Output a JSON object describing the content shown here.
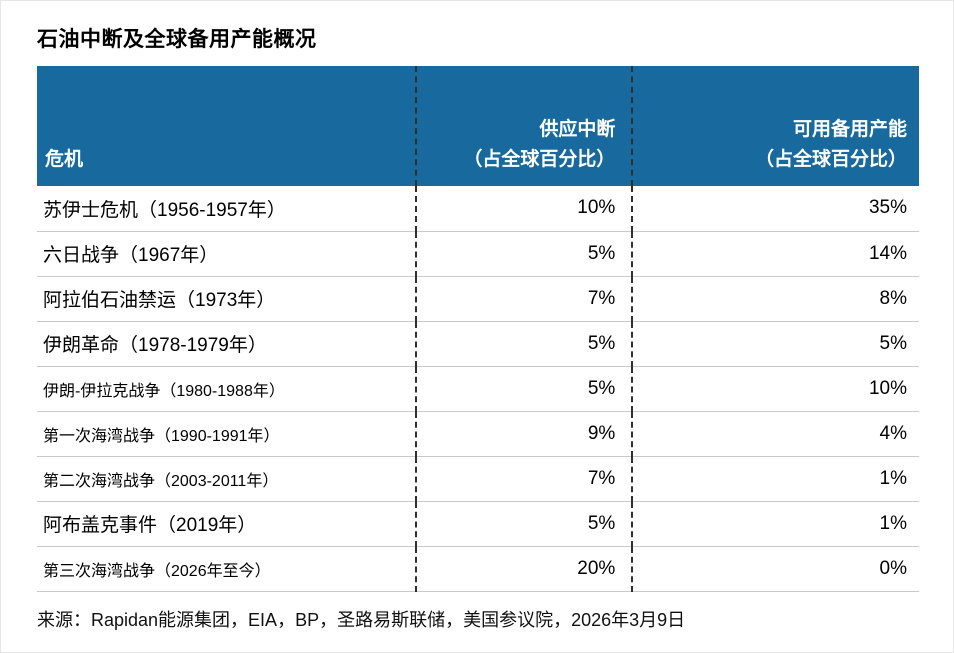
{
  "title": "石油中断及全球备用产能概况",
  "table": {
    "header": {
      "crisis": "危机",
      "disruption_main": "供应中断",
      "disruption_sub": "（占全球百分比）",
      "spare_main": "可用备用产能",
      "spare_sub": "（占全球百分比）"
    },
    "rows": [
      {
        "crisis": "苏伊士危机（1956-1957年）",
        "disruption": "10%",
        "spare": "35%"
      },
      {
        "crisis": "六日战争（1967年）",
        "disruption": "5%",
        "spare": "14%"
      },
      {
        "crisis": "阿拉伯石油禁运（1973年）",
        "disruption": "7%",
        "spare": "8%"
      },
      {
        "crisis": "伊朗革命（1978-1979年）",
        "disruption": "5%",
        "spare": "5%"
      },
      {
        "crisis": "伊朗-伊拉克战争（1980-1988年）",
        "disruption": "5%",
        "spare": "10%"
      },
      {
        "crisis": "第一次海湾战争（1990-1991年）",
        "disruption": "9%",
        "spare": "4%"
      },
      {
        "crisis": "第二次海湾战争（2003-2011年）",
        "disruption": "7%",
        "spare": "1%"
      },
      {
        "crisis": "阿布盖克事件（2019年）",
        "disruption": "5%",
        "spare": "1%"
      },
      {
        "crisis": "第三次海湾战争（2026年至今）",
        "disruption": "20%",
        "spare": "0%"
      }
    ]
  },
  "source": "来源：Rapidan能源集团，EIA，BP，圣路易斯联储，美国参议院，2026年3月9日",
  "colors": {
    "header_bg": "#17699e",
    "header_text": "#ffffff",
    "row_divider": "#c9c9c9",
    "column_dash": "#2f2f2f"
  },
  "chart_data": {
    "type": "table",
    "title": "石油中断及全球备用产能概况",
    "columns": [
      "危机",
      "供应中断（占全球百分比）",
      "可用备用产能（占全球百分比）"
    ],
    "rows": [
      [
        "苏伊士危机（1956-1957年）",
        "10%",
        "35%"
      ],
      [
        "六日战争（1967年）",
        "5%",
        "14%"
      ],
      [
        "阿拉伯石油禁运（1973年）",
        "7%",
        "8%"
      ],
      [
        "伊朗革命（1978-1979年）",
        "5%",
        "5%"
      ],
      [
        "伊朗-伊拉克战争（1980-1988年）",
        "5%",
        "10%"
      ],
      [
        "第一次海湾战争（1990-1991年）",
        "9%",
        "4%"
      ],
      [
        "第二次海湾战争（2003-2011年）",
        "7%",
        "1%"
      ],
      [
        "阿布盖克事件（2019年）",
        "5%",
        "1%"
      ],
      [
        "第三次海湾战争（2026年至今）",
        "20%",
        "0%"
      ]
    ],
    "units": "percent of global",
    "source": "来源：Rapidan能源集团，EIA，BP，圣路易斯联储，美国参议院，2026年3月9日"
  }
}
